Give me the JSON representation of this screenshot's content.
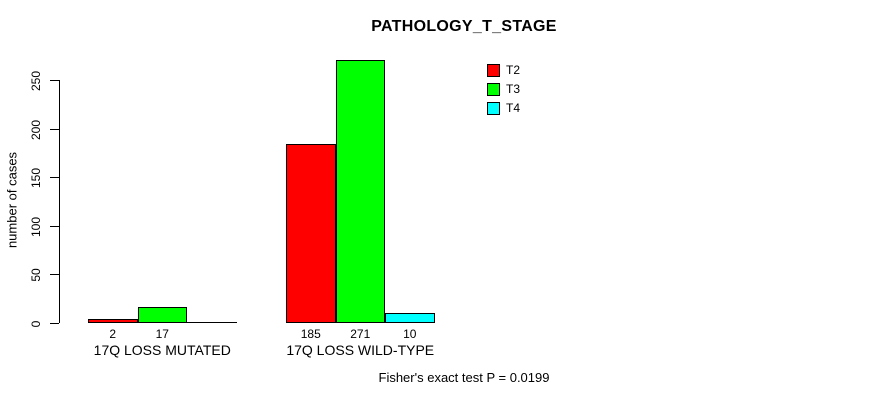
{
  "title": "PATHOLOGY_T_STAGE",
  "y_axis": {
    "label": "number of cases",
    "ticks": [
      0,
      50,
      100,
      150,
      200,
      250
    ]
  },
  "legend": {
    "items": [
      {
        "label": "T2",
        "color": "#ff0000"
      },
      {
        "label": "T3",
        "color": "#00ff00"
      },
      {
        "label": "T4",
        "color": "#00ffff"
      }
    ]
  },
  "footer": "Fisher's exact test P = 0.0199",
  "chart_data": {
    "type": "bar",
    "title": "PATHOLOGY_T_STAGE",
    "categories": [
      "17Q LOSS MUTATED",
      "17Q LOSS WILD-TYPE"
    ],
    "series": [
      {
        "name": "T2",
        "color": "#ff0000",
        "values": [
          2,
          185
        ]
      },
      {
        "name": "T3",
        "color": "#00ff00",
        "values": [
          17,
          271
        ]
      },
      {
        "name": "T4",
        "color": "#00ffff",
        "values": [
          0,
          10
        ]
      }
    ],
    "bar_value_labels": [
      [
        "2",
        "17",
        ""
      ],
      [
        "185",
        "271",
        "10"
      ]
    ],
    "xlabel": "",
    "ylabel": "number of cases",
    "ylim": [
      0,
      250
    ],
    "yticks": [
      0,
      50,
      100,
      150,
      200,
      250
    ],
    "grid": false,
    "legend_position": "top-right",
    "annotation": "Fisher's exact test P = 0.0199"
  }
}
